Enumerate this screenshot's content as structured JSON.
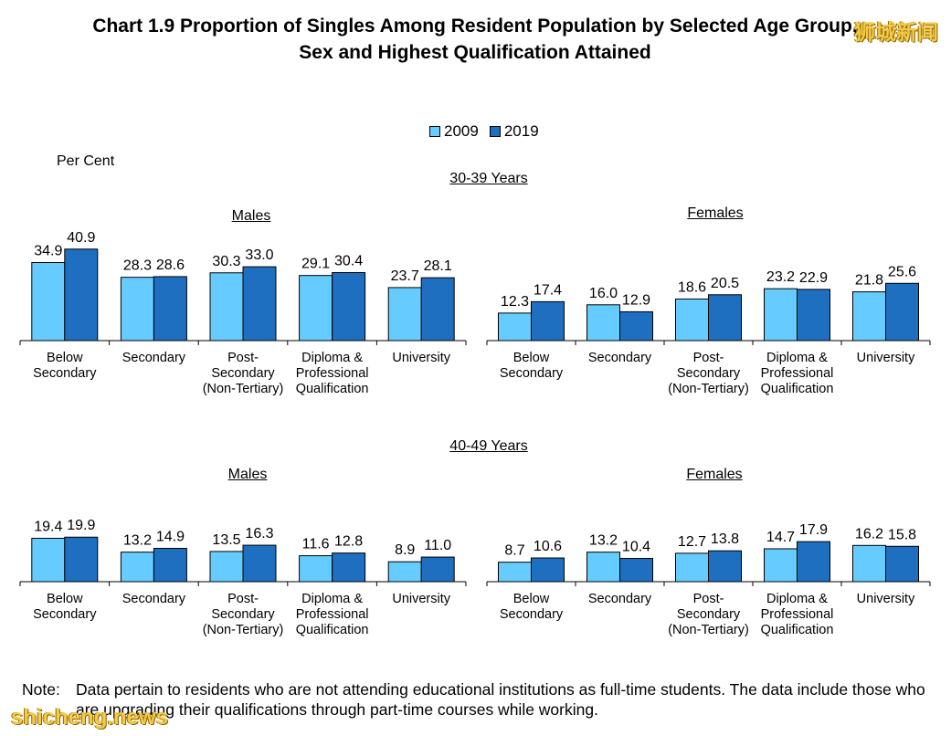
{
  "title": {
    "line1": "Chart 1.9  Proportion of Singles Among Resident Population by Selected Age Group,",
    "line2": "Sex and Highest Qualification Attained"
  },
  "watermark_top": "狮城新闻",
  "watermark_bottom": "shicheng.news",
  "ylabel": "Per Cent",
  "note": {
    "lead": "Note:",
    "text": "Data pertain to residents who are not attending educational institutions as full-time students. The data include those who are upgrading their qualifications through part-time courses while working."
  },
  "colors": {
    "y2009": "#66ccff",
    "y2019": "#1f6fc0"
  },
  "chart_data": [
    {
      "type": "bar",
      "group": "30-39 Years",
      "title": "Males",
      "categories": [
        "Below Secondary",
        "Secondary",
        "Post-Secondary (Non-Tertiary)",
        "Diploma & Professional Qualification",
        "University"
      ],
      "series": [
        {
          "name": "2009",
          "values": [
            34.9,
            28.3,
            30.3,
            29.1,
            23.7
          ]
        },
        {
          "name": "2019",
          "values": [
            40.9,
            28.6,
            33.0,
            30.4,
            28.1
          ]
        }
      ],
      "ylabel": "Per Cent",
      "ylim": [
        0,
        50
      ]
    },
    {
      "type": "bar",
      "group": "30-39 Years",
      "title": "Females",
      "categories": [
        "Below Secondary",
        "Secondary",
        "Post-Secondary (Non-Tertiary)",
        "Diploma & Professional Qualification",
        "University"
      ],
      "series": [
        {
          "name": "2009",
          "values": [
            12.3,
            16.0,
            18.6,
            23.2,
            21.8
          ]
        },
        {
          "name": "2019",
          "values": [
            17.4,
            12.9,
            20.5,
            22.9,
            25.6
          ]
        }
      ],
      "ylim": [
        0,
        50
      ]
    },
    {
      "type": "bar",
      "group": "40-49 Years",
      "title": "Males",
      "categories": [
        "Below Secondary",
        "Secondary",
        "Post-Secondary (Non-Tertiary)",
        "Diploma & Professional Qualification",
        "University"
      ],
      "series": [
        {
          "name": "2009",
          "values": [
            19.4,
            13.2,
            13.5,
            11.6,
            8.9
          ]
        },
        {
          "name": "2019",
          "values": [
            19.9,
            14.9,
            16.3,
            12.8,
            11.0
          ]
        }
      ],
      "ylim": [
        0,
        50
      ]
    },
    {
      "type": "bar",
      "group": "40-49 Years",
      "title": "Females",
      "categories": [
        "Below Secondary",
        "Secondary",
        "Post-Secondary (Non-Tertiary)",
        "Diploma & Professional Qualification",
        "University"
      ],
      "series": [
        {
          "name": "2009",
          "values": [
            8.7,
            13.2,
            12.7,
            14.7,
            16.2
          ]
        },
        {
          "name": "2019",
          "values": [
            10.6,
            10.4,
            13.8,
            17.9,
            15.8
          ]
        }
      ],
      "ylim": [
        0,
        50
      ]
    }
  ],
  "category_labels": [
    [
      "Below",
      "Secondary"
    ],
    [
      "Secondary"
    ],
    [
      "Post-",
      "Secondary",
      "(Non-Tertiary)"
    ],
    [
      "Diploma &",
      "Professional",
      "Qualification"
    ],
    [
      "University"
    ]
  ],
  "legend": [
    "2009",
    "2019"
  ],
  "age_groups": [
    "30-39 Years",
    "40-49 Years"
  ]
}
